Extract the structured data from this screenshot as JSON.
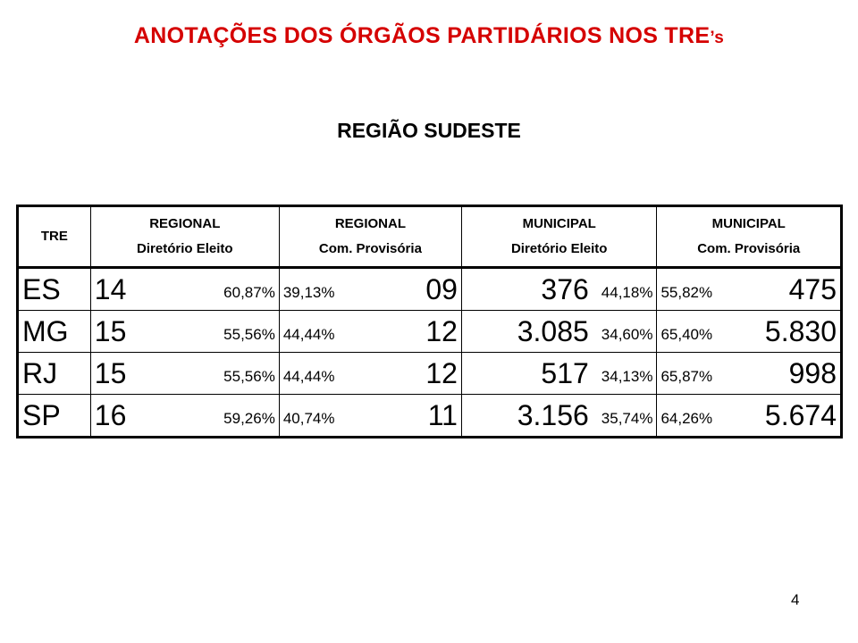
{
  "title": {
    "main": "ANOTAÇÕES DOS ÓRGÃOS PARTIDÁRIOS NOS TRE",
    "suffix": "’s"
  },
  "subtitle": "REGIÃO SUDESTE",
  "table": {
    "headers": [
      {
        "line1": "TRE",
        "line2": ""
      },
      {
        "line1": "REGIONAL",
        "line2": "Diretório  Eleito"
      },
      {
        "line1": "REGIONAL",
        "line2": "Com. Provisória"
      },
      {
        "line1": "MUNICIPAL",
        "line2": "Diretório  Eleito"
      },
      {
        "line1": "MUNICIPAL",
        "line2": "Com. Provisória"
      }
    ],
    "rows": [
      {
        "tre": "ES",
        "reg_dir_num": "14",
        "reg_dir_pct": "60,87%",
        "reg_com_pct": "39,13%",
        "reg_com_num": "09",
        "mun_dir_num": "376",
        "mun_dir_pct": "44,18%",
        "mun_com_pct": "55,82%",
        "mun_com_num": "475"
      },
      {
        "tre": "MG",
        "reg_dir_num": "15",
        "reg_dir_pct": "55,56%",
        "reg_com_pct": "44,44%",
        "reg_com_num": "12",
        "mun_dir_num": "3.085",
        "mun_dir_pct": "34,60%",
        "mun_com_pct": "65,40%",
        "mun_com_num": "5.830"
      },
      {
        "tre": "RJ",
        "reg_dir_num": "15",
        "reg_dir_pct": "55,56%",
        "reg_com_pct": "44,44%",
        "reg_com_num": "12",
        "mun_dir_num": "517",
        "mun_dir_pct": "34,13%",
        "mun_com_pct": "65,87%",
        "mun_com_num": "998"
      },
      {
        "tre": "SP",
        "reg_dir_num": "16",
        "reg_dir_pct": "59,26%",
        "reg_com_pct": "40,74%",
        "reg_com_num": "11",
        "mun_dir_num": "3.156",
        "mun_dir_pct": "35,74%",
        "mun_com_pct": "64,26%",
        "mun_com_num": "5.674"
      }
    ]
  },
  "page_number": "4",
  "colors": {
    "title": "#d50000",
    "text": "#000000",
    "background": "#ffffff"
  }
}
